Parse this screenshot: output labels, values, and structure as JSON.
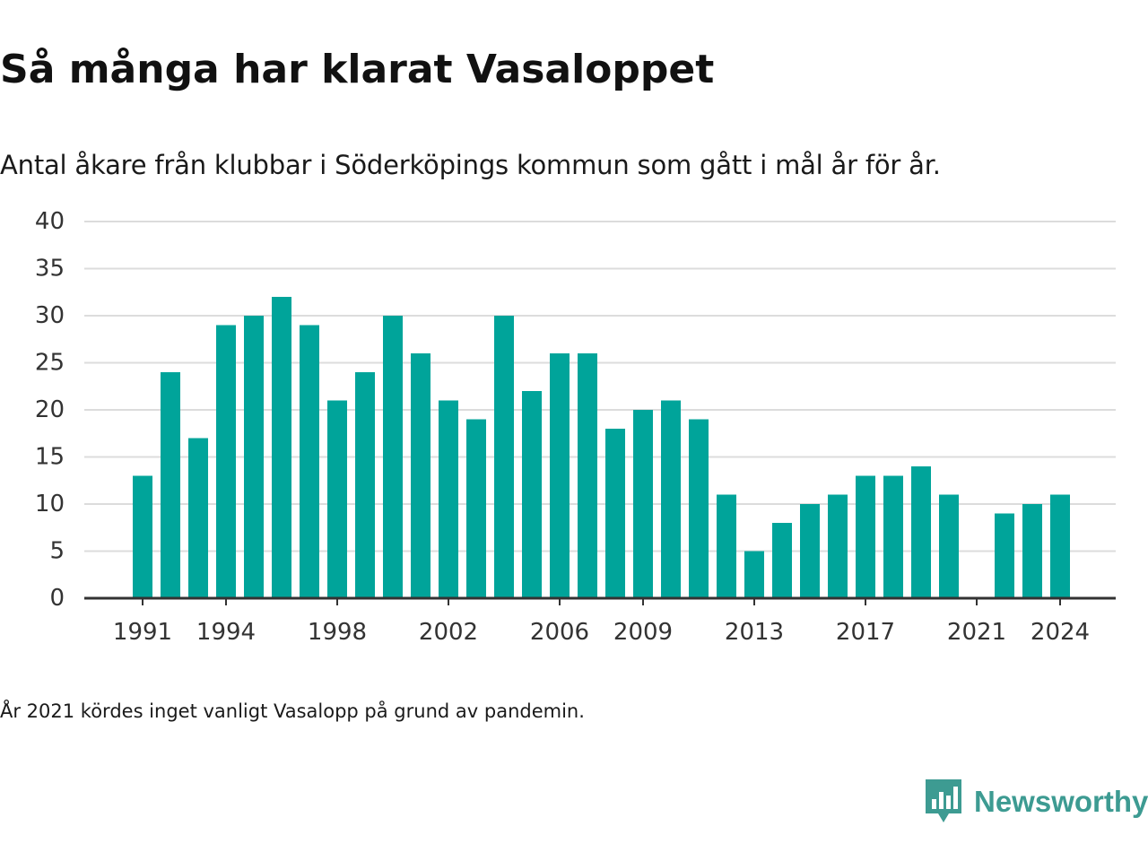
{
  "title": "Så många har klarat Vasaloppet",
  "subtitle": "Antal åkare från klubbar i Söderköpings kommun som gått i mål år för år.",
  "footnote": "År 2021 kördes inget vanligt Vasalopp på grund av pandemin.",
  "brand": {
    "name": "Newsworthy",
    "icon": "newsworthy-logo-icon",
    "color": "#3d9b92"
  },
  "chart_data": {
    "type": "bar",
    "categories": [
      "1991",
      "1992",
      "1993",
      "1994",
      "1995",
      "1996",
      "1997",
      "1998",
      "1999",
      "2000",
      "2001",
      "2002",
      "2003",
      "2004",
      "2005",
      "2006",
      "2007",
      "2008",
      "2009",
      "2010",
      "2011",
      "2012",
      "2013",
      "2014",
      "2015",
      "2016",
      "2017",
      "2018",
      "2019",
      "2020",
      "2021",
      "2022",
      "2023",
      "2024"
    ],
    "values": [
      13,
      24,
      17,
      29,
      30,
      32,
      29,
      21,
      24,
      30,
      26,
      21,
      19,
      30,
      22,
      26,
      26,
      18,
      20,
      21,
      19,
      11,
      5,
      8,
      10,
      11,
      13,
      13,
      14,
      11,
      null,
      9,
      10,
      11
    ],
    "xtick_labels": [
      "1991",
      "1994",
      "1998",
      "2002",
      "2006",
      "2009",
      "2013",
      "2017",
      "2021",
      "2024"
    ],
    "ytick_labels": [
      "0",
      "5",
      "10",
      "15",
      "20",
      "25",
      "30",
      "35",
      "40"
    ],
    "ylim": [
      0,
      40
    ],
    "xlabel": "",
    "ylabel": "",
    "grid": true,
    "bar_color": "#00a49a"
  }
}
